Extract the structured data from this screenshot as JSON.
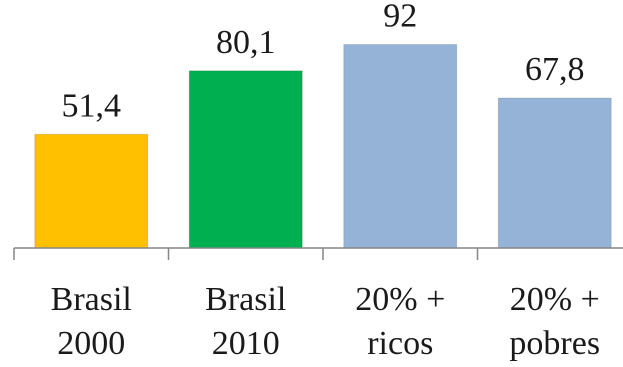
{
  "chart_data": {
    "type": "bar",
    "categories": [
      [
        "Brasil",
        "2000"
      ],
      [
        "Brasil",
        "2010"
      ],
      [
        "20% +",
        "ricos"
      ],
      [
        "20% +",
        "pobres"
      ]
    ],
    "values": [
      51.4,
      80.1,
      92,
      67.8
    ],
    "value_labels": [
      "51,4",
      "80,1",
      "92",
      "67,8"
    ],
    "bar_colors": [
      "#FFC000",
      "#00B050",
      "#95B3D7",
      "#95B3D7"
    ],
    "ylim": [
      0,
      100
    ],
    "grid": false,
    "legend": "none"
  }
}
